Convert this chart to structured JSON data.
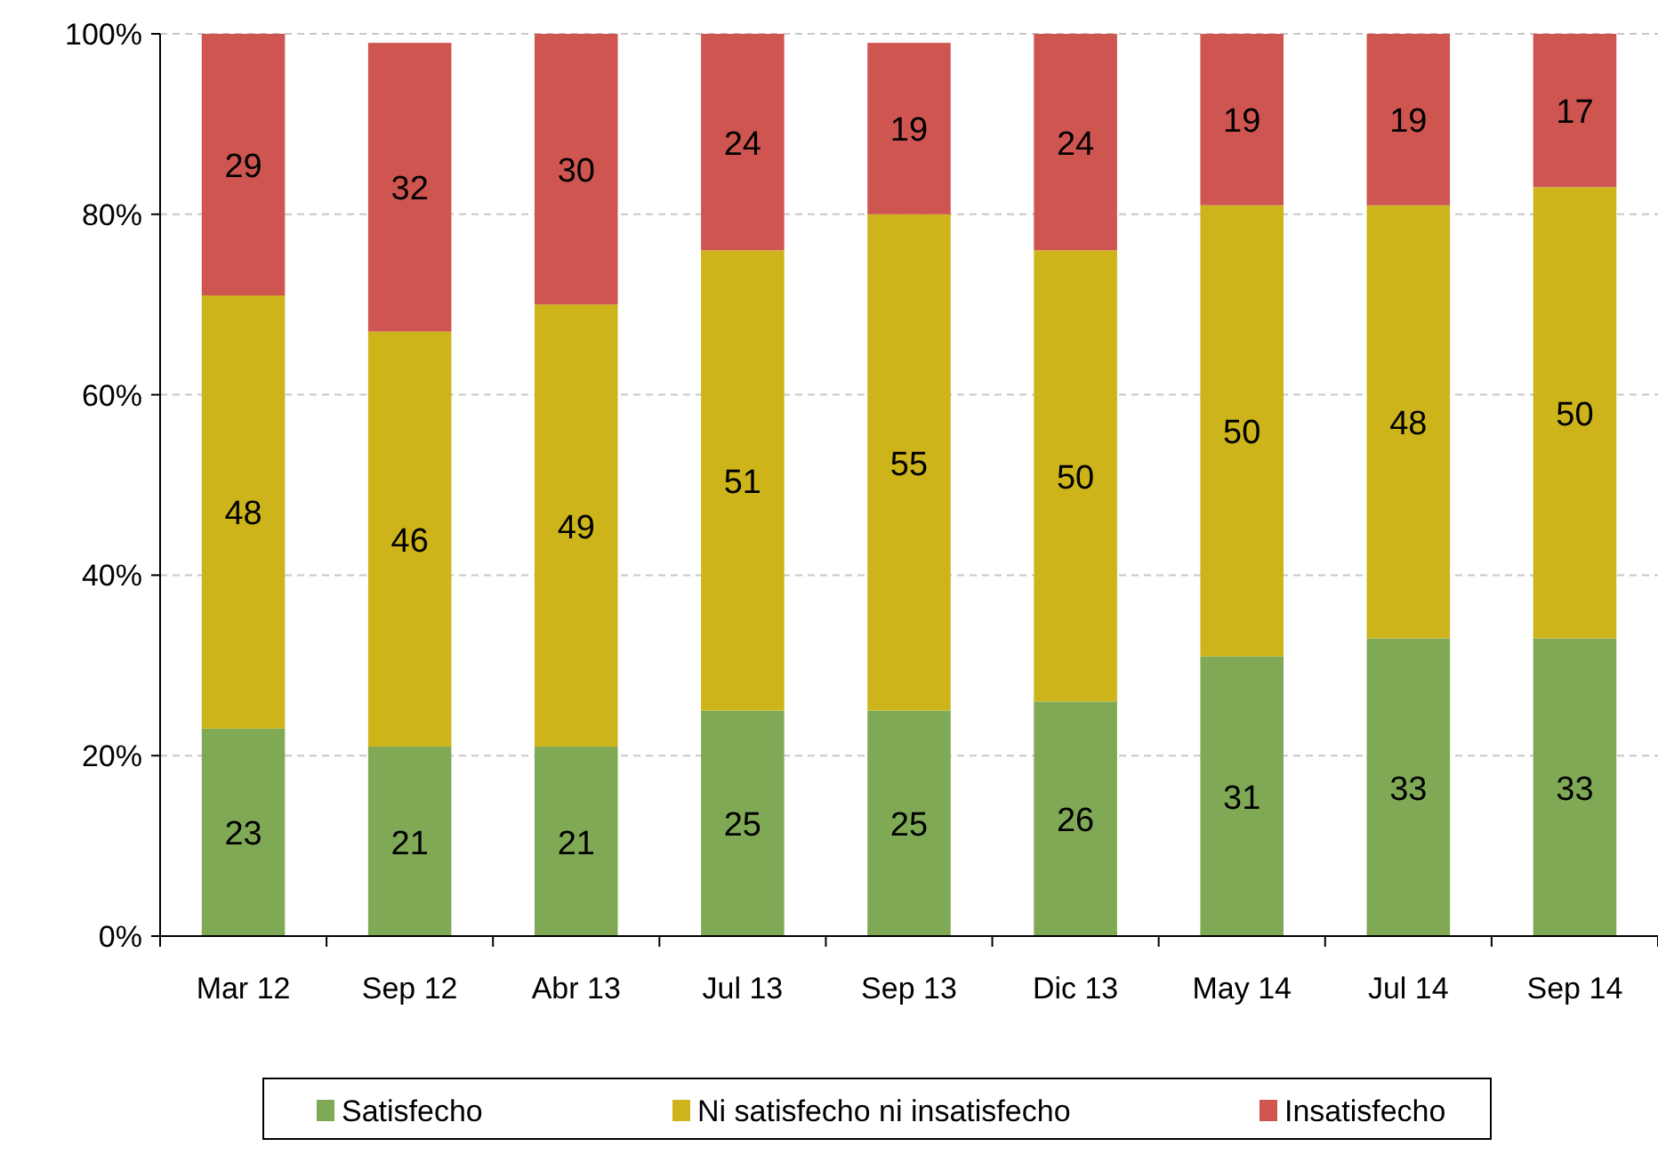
{
  "chart_data": {
    "type": "bar",
    "stacked": true,
    "categories": [
      "Mar 12",
      "Sep 12",
      "Abr 13",
      "Jul 13",
      "Sep 13",
      "Dic 13",
      "May 14",
      "Jul 14",
      "Sep 14"
    ],
    "series": [
      {
        "name": "Satisfecho",
        "color": "#80a956",
        "values": [
          23,
          21,
          21,
          25,
          25,
          26,
          31,
          33,
          33
        ]
      },
      {
        "name": "Ni satisfecho  ni insatisfecho",
        "color": "#cdb41b",
        "values": [
          48,
          46,
          49,
          51,
          55,
          50,
          50,
          48,
          50
        ]
      },
      {
        "name": "Insatisfecho",
        "color": "#cf5550",
        "values": [
          29,
          32,
          30,
          24,
          19,
          24,
          19,
          19,
          17
        ]
      }
    ],
    "ylim": [
      0,
      100
    ],
    "yticks": [
      {
        "value": 0,
        "label": "0%"
      },
      {
        "value": 20,
        "label": "20%"
      },
      {
        "value": 40,
        "label": "40%"
      },
      {
        "value": 60,
        "label": "60%"
      },
      {
        "value": 80,
        "label": "80%"
      },
      {
        "value": 100,
        "label": "100%"
      }
    ],
    "grid": "y",
    "data_labels": true,
    "legend": "bottom"
  }
}
